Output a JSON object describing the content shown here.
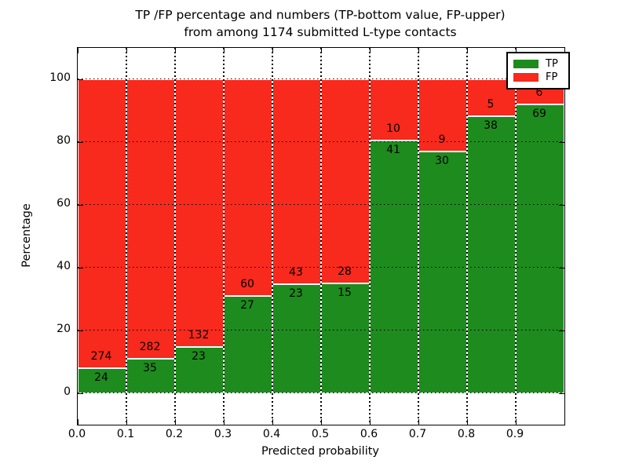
{
  "chart_data": {
    "type": "bar",
    "variant": "stacked-percentage",
    "title_line1": "TP /FP percentage and numbers (TP-bottom value, FP-upper)",
    "title_line2": "from among 1174 submitted L-type contacts",
    "xlabel": "Predicted probability",
    "ylabel": "Percentage",
    "total_contacts": 1174,
    "xlim": [
      0.0,
      1.0
    ],
    "ylim": [
      -10,
      110
    ],
    "grid": true,
    "xticks": [
      "0.0",
      "0.1",
      "0.2",
      "0.3",
      "0.4",
      "0.5",
      "0.6",
      "0.7",
      "0.8",
      "0.9"
    ],
    "yticks": [
      "0",
      "20",
      "40",
      "60",
      "80",
      "100"
    ],
    "ytick_values": [
      0,
      20,
      40,
      60,
      80,
      100
    ],
    "legend": {
      "position": "upper right",
      "entries": [
        {
          "label": "TP",
          "color": "#1e8b1e"
        },
        {
          "label": "FP",
          "color": "#f8291d"
        }
      ]
    },
    "colors": {
      "tp": "#1e8b1e",
      "fp": "#f8291d",
      "bar_edge": "#ffffff"
    },
    "bins": [
      {
        "range": "0.0-0.1",
        "tp": 24,
        "fp": 274
      },
      {
        "range": "0.1-0.2",
        "tp": 35,
        "fp": 282
      },
      {
        "range": "0.2-0.3",
        "tp": 23,
        "fp": 132
      },
      {
        "range": "0.3-0.4",
        "tp": 27,
        "fp": 60
      },
      {
        "range": "0.4-0.5",
        "tp": 23,
        "fp": 43
      },
      {
        "range": "0.5-0.6",
        "tp": 15,
        "fp": 28
      },
      {
        "range": "0.6-0.7",
        "tp": 41,
        "fp": 10
      },
      {
        "range": "0.7-0.8",
        "tp": 30,
        "fp": 9
      },
      {
        "range": "0.8-0.9",
        "tp": 38,
        "fp": 5
      },
      {
        "range": "0.9-1.0",
        "tp": 69,
        "fp": 6
      }
    ]
  }
}
